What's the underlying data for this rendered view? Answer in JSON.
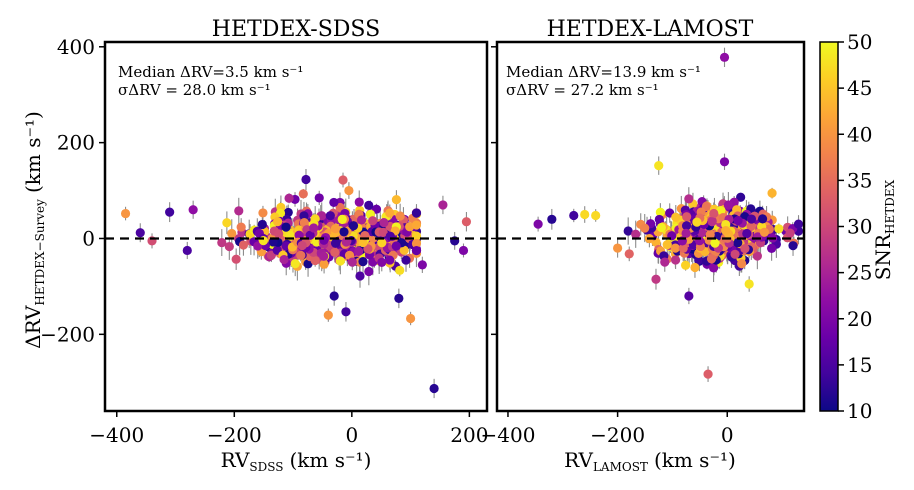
{
  "chart_data": [
    {
      "type": "scatter",
      "title": "HETDEX-SDSS",
      "xlabel_main": "RV",
      "xlabel_sub": "SDSS",
      "xlabel_units": "(km s⁻¹)",
      "ylabel_main": "ΔRV",
      "ylabel_sub": "HETDEX−Survey",
      "ylabel_units": "(km s⁻¹)",
      "xlim": [
        -420,
        230
      ],
      "ylim": [
        -360,
        410
      ],
      "xticks": [
        -400,
        -200,
        0,
        200
      ],
      "xtick_labels": [
        "−400",
        "−200",
        "0",
        "200"
      ],
      "yticks": [
        -200,
        0,
        200,
        400
      ],
      "ytick_labels": [
        "−200",
        "0",
        "200",
        "400"
      ],
      "reference_line": 0,
      "annotation_median": "Median ΔRV=3.5 km s⁻¹",
      "annotation_sigma": "σΔRV = 28.0 km s⁻¹",
      "cloud": {
        "count": 700,
        "x_center": -20,
        "x_spread": 95,
        "y_center": 3,
        "y_spread": 28,
        "x_range": [
          -320,
          110
        ],
        "snr_range": [
          10,
          50
        ]
      },
      "notable_points": [
        {
          "x": 140,
          "y": -313,
          "snr": 12
        },
        {
          "x": -385,
          "y": 52,
          "snr": 40
        },
        {
          "x": -40,
          "y": -160,
          "snr": 40
        },
        {
          "x": 100,
          "y": -167,
          "snr": 40
        },
        {
          "x": -78,
          "y": 123,
          "snr": 14
        },
        {
          "x": -15,
          "y": 122,
          "snr": 33
        },
        {
          "x": -5,
          "y": 100,
          "snr": 40
        },
        {
          "x": -10,
          "y": -153,
          "snr": 14
        },
        {
          "x": -30,
          "y": -120,
          "snr": 12
        },
        {
          "x": 80,
          "y": -125,
          "snr": 12
        },
        {
          "x": 155,
          "y": 70,
          "snr": 25
        },
        {
          "x": 195,
          "y": 35,
          "snr": 33
        },
        {
          "x": 190,
          "y": -25,
          "snr": 20
        },
        {
          "x": -360,
          "y": 12,
          "snr": 15
        },
        {
          "x": -340,
          "y": -5,
          "snr": 31
        },
        {
          "x": -310,
          "y": 55,
          "snr": 14
        },
        {
          "x": -270,
          "y": 60,
          "snr": 22
        },
        {
          "x": -280,
          "y": -25,
          "snr": 15
        },
        {
          "x": 120,
          "y": -55,
          "snr": 20
        },
        {
          "x": 175,
          "y": -5,
          "snr": 12
        }
      ]
    },
    {
      "type": "scatter",
      "title": "HETDEX-LAMOST",
      "xlabel_main": "RV",
      "xlabel_sub": "LAMOST",
      "xlabel_units": "(km s⁻¹)",
      "xlim": [
        -420,
        140
      ],
      "ylim": [
        -360,
        410
      ],
      "xticks": [
        -400,
        -200,
        0
      ],
      "xtick_labels": [
        "−400",
        "−200",
        "0"
      ],
      "reference_line": 0,
      "annotation_median": "Median ΔRV=13.9 km s⁻¹",
      "annotation_sigma": "σΔRV = 27.2 km s⁻¹",
      "cloud": {
        "count": 650,
        "x_center": -20,
        "x_spread": 70,
        "y_center": 12,
        "y_spread": 27,
        "x_range": [
          -260,
          130
        ],
        "snr_range": [
          10,
          50
        ]
      },
      "notable_points": [
        {
          "x": -5,
          "y": 378,
          "snr": 22
        },
        {
          "x": -35,
          "y": -283,
          "snr": 33
        },
        {
          "x": -125,
          "y": 152,
          "snr": 48
        },
        {
          "x": -5,
          "y": 160,
          "snr": 20
        },
        {
          "x": -130,
          "y": -85,
          "snr": 28
        },
        {
          "x": -320,
          "y": 40,
          "snr": 12
        },
        {
          "x": -345,
          "y": 30,
          "snr": 20
        },
        {
          "x": -260,
          "y": 50,
          "snr": 47
        },
        {
          "x": -240,
          "y": 48,
          "snr": 47
        },
        {
          "x": -280,
          "y": 48,
          "snr": 14
        },
        {
          "x": 40,
          "y": -95,
          "snr": 48
        },
        {
          "x": 120,
          "y": -15,
          "snr": 12
        },
        {
          "x": 130,
          "y": 30,
          "snr": 14
        },
        {
          "x": -200,
          "y": -20,
          "snr": 40
        },
        {
          "x": -70,
          "y": -120,
          "snr": 16
        }
      ]
    }
  ],
  "colorbar": {
    "label_main": "SNR",
    "label_sub": "HETDEX",
    "range": [
      10,
      50
    ],
    "ticks": [
      10,
      15,
      20,
      25,
      30,
      35,
      40,
      45,
      50
    ],
    "tick_labels": [
      "10",
      "15",
      "20",
      "25",
      "30",
      "35",
      "40",
      "45",
      "50"
    ],
    "colormap": "plasma",
    "stops": [
      "#0d0887",
      "#41049d",
      "#6a00a8",
      "#8f0da4",
      "#b12a90",
      "#cc4778",
      "#e16462",
      "#f2844b",
      "#fca636",
      "#fcce25",
      "#f0f921"
    ]
  },
  "colors": {
    "errorbar": "#8c8c8c",
    "reference_line": "#000000",
    "frame": "#000000"
  }
}
